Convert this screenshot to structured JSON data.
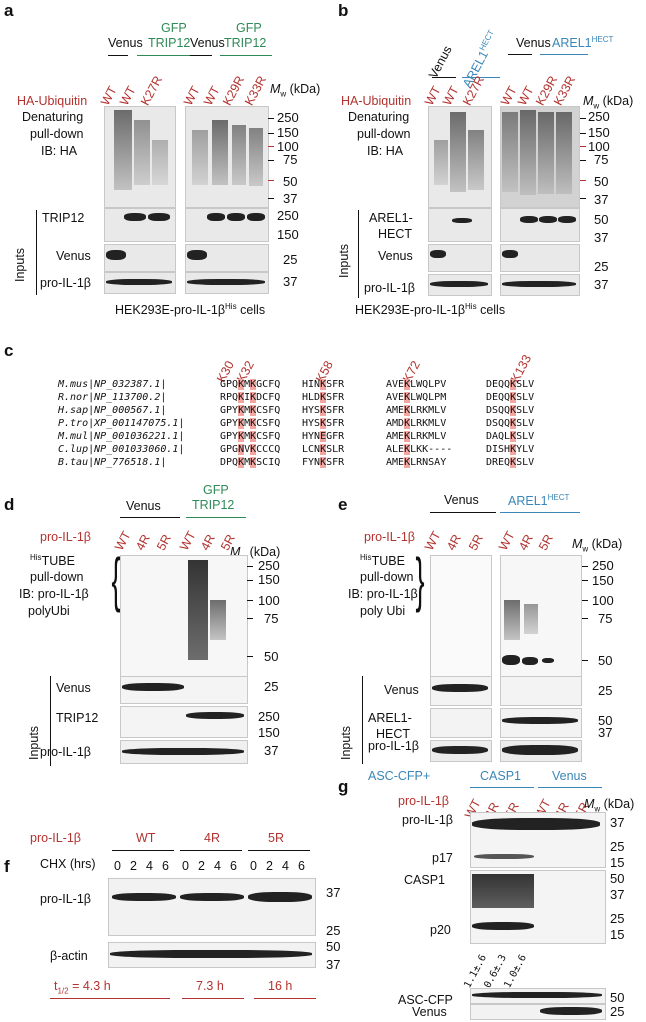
{
  "panel_a": {
    "label": "a",
    "group1": {
      "venus": "Venus",
      "gfp": "GFP",
      "trip12": "TRIP12"
    },
    "group2": {
      "venus": "Venus",
      "gfp": "GFP",
      "trip12": "TRIP12"
    },
    "ha_ubiquitin": "HA-Ubiquitin",
    "lanes1": [
      "WT",
      "WT",
      "K27R"
    ],
    "lanes2": [
      "WT",
      "WT",
      "K29R",
      "K33R"
    ],
    "mw_header": "M",
    "mw_sub": "w",
    "mw_unit": " (kDa)",
    "pulldown_line1": "Denaturing",
    "pulldown_line2": "pull-down",
    "pulldown_line3": "IB: HA",
    "mw_top": [
      "250",
      "150",
      "100",
      "75",
      "50",
      "37"
    ],
    "trip12": "TRIP12",
    "venus": "Venus",
    "proil": "pro-IL-1β",
    "inputs": "Inputs",
    "mw_trip": [
      "250",
      "150"
    ],
    "mw_venus": "25",
    "mw_proil": "37",
    "cells_pre": "HEK293E-pro-IL-1β",
    "cells_sup": "His",
    "cells_post": " cells"
  },
  "panel_b": {
    "label": "b",
    "venus1": "Venus",
    "arel1": "AREL1",
    "hect_sup": "HECT",
    "venus2": "Venus",
    "arel2": "AREL1",
    "hect_sup2": "HECT",
    "ha_ubiquitin": "HA-Ubiquitin",
    "lanes1": [
      "WT",
      "WT",
      "K27R"
    ],
    "lanes2": [
      "WT",
      "WT",
      "K29R",
      "K33R"
    ],
    "mw_header": "M",
    "mw_sub": "w",
    "mw_unit": " (kDa)",
    "pulldown_line1": "Denaturing",
    "pulldown_line2": "pull-down",
    "pulldown_line3": "IB: HA",
    "mw_top": [
      "250",
      "150",
      "100",
      "75",
      "50",
      "37"
    ],
    "arel_hect1": "AREL1-",
    "arel_hect2": "HECT",
    "venus": "Venus",
    "proil": "pro-IL-1β",
    "inputs": "Inputs",
    "mw_arel": [
      "50",
      "37"
    ],
    "mw_venus": "25",
    "mw_proil": "37",
    "cells_pre": "HEK293E-pro-IL-1β",
    "cells_sup": "His",
    "cells_post": " cells"
  },
  "panel_c": {
    "label": "c",
    "sites": [
      "K30",
      "K32",
      "K58",
      "K72",
      "K133"
    ],
    "rows": [
      {
        "species": "M.mus|NP_032387.1|",
        "s1": "GPQ",
        "s1h": "K",
        "s1b": "M",
        "s1h2": "K",
        "s1c": "GCFQ",
        "s2": "HIN",
        "s2h": "K",
        "s2c": "SFR",
        "s3": "AVE",
        "s3h": "K",
        "s3c": "LWQLPV",
        "s4": "DEQQ",
        "s4h": "K",
        "s4c": "SLV"
      },
      {
        "species": "R.nor|NP_113700.2|",
        "s1": "RPQ",
        "s1h": "K",
        "s1b": "I",
        "s1h2": "K",
        "s1c": "DCFQ",
        "s2": "HLD",
        "s2h": "K",
        "s2c": "SFR",
        "s3": "AVE",
        "s3h": "K",
        "s3c": "LWQLPM",
        "s4": "DEQQ",
        "s4h": "K",
        "s4c": "SLV"
      },
      {
        "species": "H.sap|NP_000567.1|",
        "s1": "GPY",
        "s1h": "K",
        "s1b": "M",
        "s1h2": "K",
        "s1c": "CSFQ",
        "s2": "HYS",
        "s2h": "K",
        "s2c": "SFR",
        "s3": "AME",
        "s3h": "K",
        "s3c": "LRKMLV",
        "s4": "DSQQ",
        "s4h": "K",
        "s4c": "SLV"
      },
      {
        "species": "P.tro|XP_001147075.1|",
        "s1": "GPY",
        "s1h": "K",
        "s1b": "M",
        "s1h2": "K",
        "s1c": "CSFQ",
        "s2": "HYS",
        "s2h": "K",
        "s2c": "SFR",
        "s3": "AMD",
        "s3h": "K",
        "s3c": "LRKMLV",
        "s4": "DSQQ",
        "s4h": "K",
        "s4c": "SLV"
      },
      {
        "species": "M.mul|NP_001036221.1|",
        "s1": "GPY",
        "s1h": "K",
        "s1b": "M",
        "s1h2": "K",
        "s1c": "CSFQ",
        "s2": "HYN",
        "s2h": "E",
        "s2c": "GFR",
        "s3": "AME",
        "s3h": "K",
        "s3c": "LRKMLV",
        "s4": "DAQL",
        "s4h": "K",
        "s4c": "SLV"
      },
      {
        "species": "C.lup|NP_001033060.1|",
        "s1": "GPG",
        "s1h": "N",
        "s1b": "V",
        "s1h2": "K",
        "s1c": "CCCQ",
        "s2": "LCN",
        "s2h": "K",
        "s2c": "SLR",
        "s3": "ALE",
        "s3h": "K",
        "s3c": "LKK----",
        "s4": "DISH",
        "s4h": "K",
        "s4c": "YLV"
      },
      {
        "species": "B.tau|NP_776518.1|",
        "s1": "DPQ",
        "s1h": "K",
        "s1b": "M",
        "s1h2": "K",
        "s1c": "SCIQ",
        "s2": "FYN",
        "s2h": "K",
        "s2c": "SFR",
        "s3": "AME",
        "s3h": "K",
        "s3c": "LRNSAY",
        "s4": "DREQ",
        "s4h": "K",
        "s4c": "SLV"
      }
    ]
  },
  "panel_d": {
    "label": "d",
    "venus": "Venus",
    "gfp": "GFP",
    "trip12": "TRIP12",
    "proil_label": "pro-IL-1β",
    "lanes": [
      "WT",
      "4R",
      "5R",
      "WT",
      "4R",
      "5R"
    ],
    "mw_header": "M",
    "mw_sub": "w",
    "mw_unit": " (kDa)",
    "tube_sup": "His",
    "tube": "TUBE",
    "pd1": "pull-down",
    "pd2": "IB: pro-IL-1β",
    "pd3": "polyUbi",
    "mw_top": [
      "250",
      "150",
      "100",
      "75",
      "50"
    ],
    "inputs": "Inputs",
    "venus_row": "Venus",
    "trip_row": "TRIP12",
    "proil_row": "pro-IL-1β",
    "mw_venus": "25",
    "mw_trip": [
      "250",
      "150"
    ],
    "mw_proil": "37"
  },
  "panel_e": {
    "label": "e",
    "venus": "Venus",
    "arel": "AREL1",
    "hect_sup": "HECT",
    "proil_label": "pro-IL-1β",
    "lanes": [
      "WT",
      "4R",
      "5R",
      "WT",
      "4R",
      "5R"
    ],
    "mw_header": "M",
    "mw_sub": "w",
    "mw_unit": " (kDa)",
    "tube_sup": "His",
    "tube": "TUBE",
    "pd1": "pull-down",
    "pd2": "IB: pro-IL-1β",
    "pd3": "poly Ubi",
    "mw_top": [
      "250",
      "150",
      "100",
      "75",
      "50"
    ],
    "inputs": "Inputs",
    "venus_row": "Venus",
    "arel_row1": "AREL1-",
    "arel_row2": "HECT",
    "proil_row": "pro-IL-1β",
    "mw_venus": "25",
    "mw_arel": "50",
    "mw_proil": "37"
  },
  "panel_f": {
    "label": "f",
    "proil_label": "pro-IL-1β",
    "groups": [
      "WT",
      "4R",
      "5R"
    ],
    "chx": "CHX (hrs)",
    "times": [
      "0",
      "2",
      "4",
      "6",
      "0",
      "2",
      "4",
      "6",
      "0",
      "2",
      "4",
      "6"
    ],
    "proil_row": "pro-IL-1β",
    "actin_row": "β-actin",
    "mw_proil": [
      "37",
      "25"
    ],
    "mw_actin": [
      "50",
      "37"
    ],
    "half_pre": "t",
    "half_sub": "1/2",
    "half_vals": [
      " = 4.3 h",
      "7.3 h",
      "16 h"
    ]
  },
  "panel_g": {
    "label": "g",
    "asc": "ASC-CFP+",
    "casp1": "CASP1",
    "venus": "Venus",
    "proil_label": "pro-IL-1β",
    "lanes": [
      "WT",
      "4R",
      "5R",
      "WT",
      "4R",
      "5R"
    ],
    "mw_header": "M",
    "mw_sub": "w",
    "mw_unit": " (kDa)",
    "proil_row": "pro-IL-1β",
    "p17": "p17",
    "casp1_row": "CASP1",
    "p20": "p20",
    "mw_top": [
      "37",
      "25",
      "15"
    ],
    "mw_casp": [
      "50",
      "37",
      "25",
      "15"
    ],
    "ratios": [
      "1.1±.6",
      "0.6±.3",
      "1.0±.6"
    ],
    "asc_row": "ASC-CFP",
    "venus_row": "Venus",
    "mw_asc": "50",
    "mw_venus": "25"
  }
}
